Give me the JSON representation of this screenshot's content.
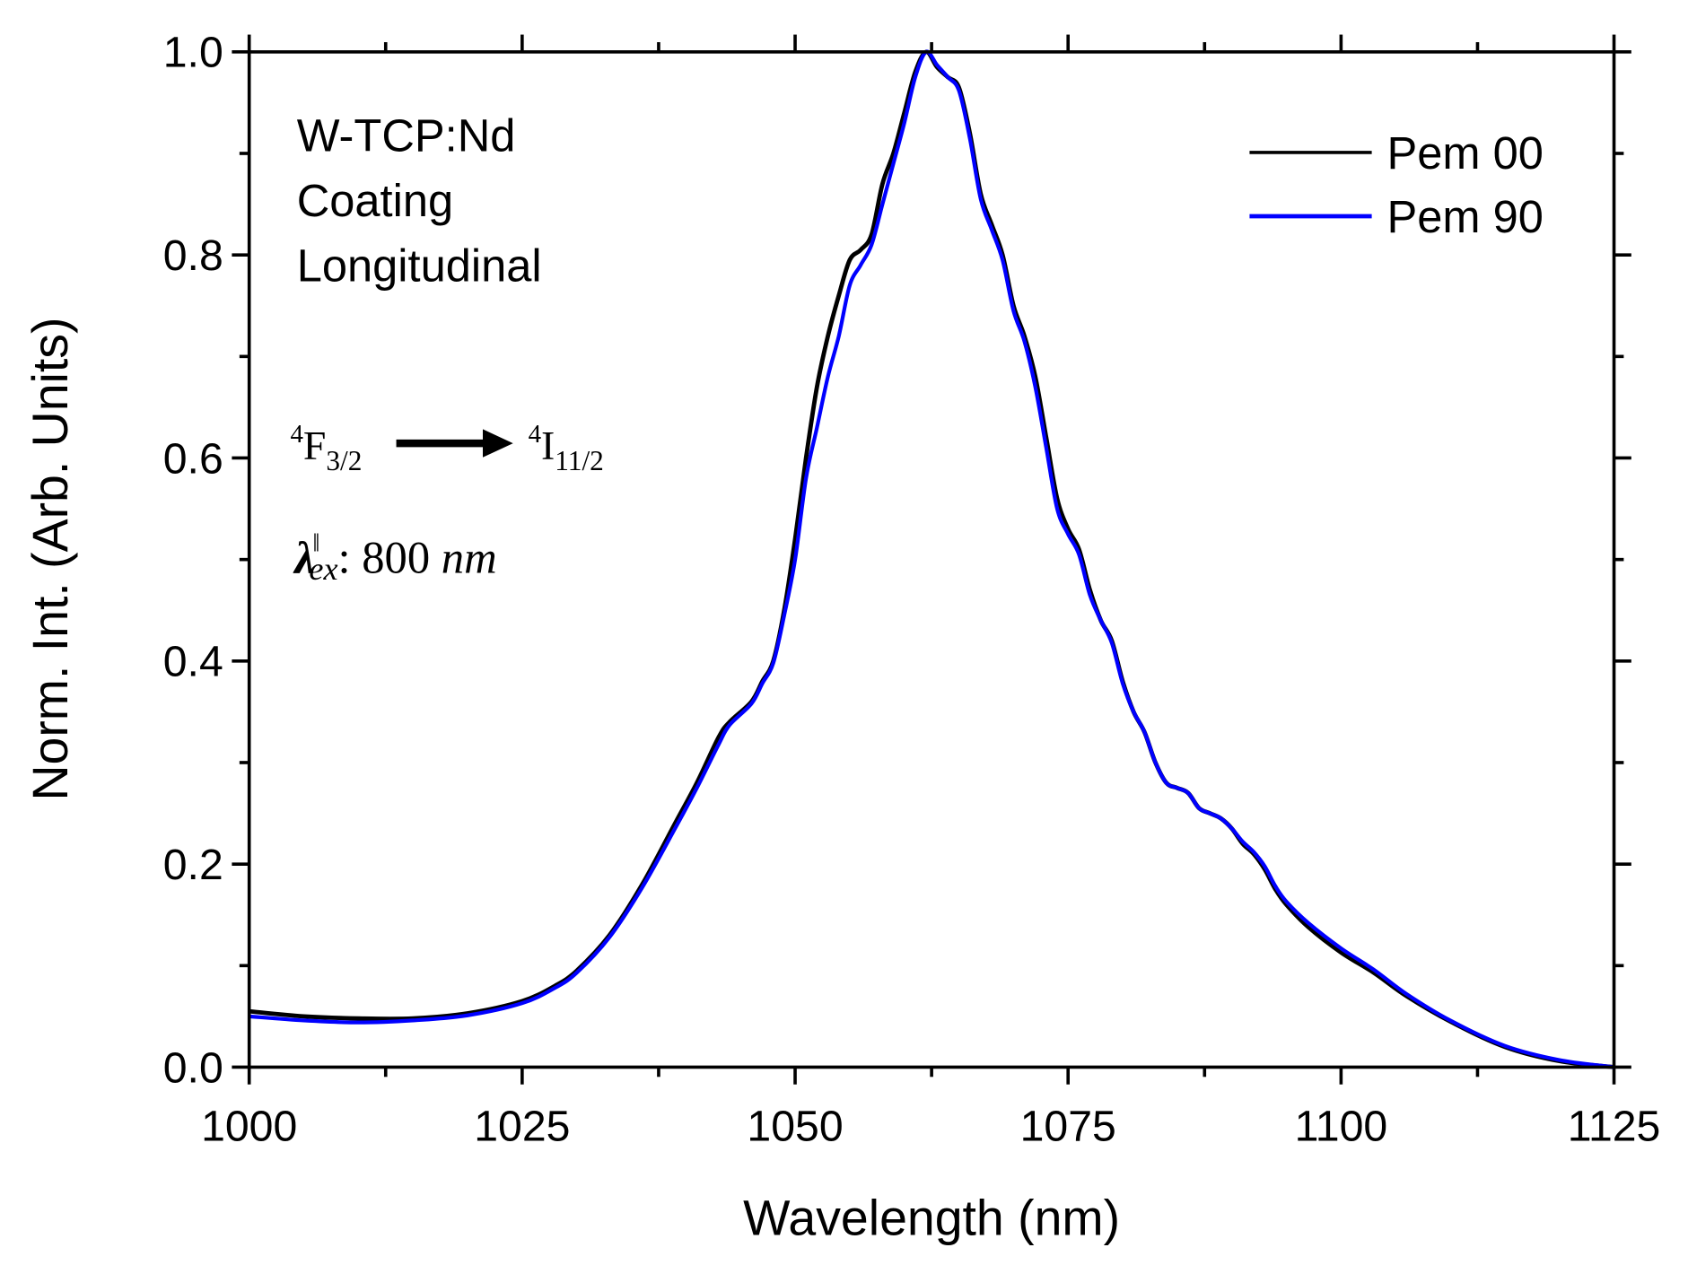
{
  "chart_data": {
    "type": "line",
    "title": "",
    "xlabel": "Wavelength (nm)",
    "ylabel": "Norm. Int. (Arb. Units)",
    "xlim": [
      1000,
      1125
    ],
    "ylim": [
      0.0,
      1.0
    ],
    "xticks": [
      "1000",
      "1025",
      "1050",
      "1075",
      "1100",
      "1125"
    ],
    "yticks": [
      "0.0",
      "0.2",
      "0.4",
      "0.6",
      "0.8",
      "1.0"
    ],
    "grid": false,
    "legend_position": "top-right",
    "x": [
      1000,
      1005,
      1010,
      1015,
      1020,
      1025,
      1028,
      1030,
      1033,
      1036,
      1039,
      1041,
      1043,
      1044,
      1046,
      1047,
      1048,
      1049,
      1050,
      1051,
      1052,
      1053,
      1054,
      1055,
      1056,
      1057,
      1058,
      1059,
      1060,
      1061,
      1062,
      1063,
      1064,
      1065,
      1066,
      1067,
      1068,
      1069,
      1070,
      1071,
      1072,
      1073,
      1074,
      1075,
      1076,
      1077,
      1078,
      1079,
      1080,
      1081,
      1082,
      1083,
      1084,
      1085,
      1086,
      1087,
      1088,
      1089,
      1090,
      1091,
      1092,
      1093,
      1094,
      1095,
      1097,
      1100,
      1103,
      1106,
      1110,
      1115,
      1120,
      1125
    ],
    "series": [
      {
        "name": "Pem 00",
        "color": "#000000",
        "values": [
          0.055,
          0.05,
          0.048,
          0.048,
          0.053,
          0.065,
          0.08,
          0.095,
          0.13,
          0.18,
          0.24,
          0.28,
          0.325,
          0.34,
          0.36,
          0.38,
          0.4,
          0.45,
          0.52,
          0.6,
          0.67,
          0.72,
          0.76,
          0.795,
          0.805,
          0.82,
          0.87,
          0.9,
          0.94,
          0.98,
          1.0,
          0.985,
          0.975,
          0.965,
          0.92,
          0.86,
          0.83,
          0.8,
          0.75,
          0.72,
          0.68,
          0.62,
          0.56,
          0.53,
          0.51,
          0.47,
          0.44,
          0.42,
          0.38,
          0.35,
          0.33,
          0.3,
          0.28,
          0.275,
          0.27,
          0.255,
          0.25,
          0.245,
          0.235,
          0.22,
          0.21,
          0.195,
          0.175,
          0.16,
          0.138,
          0.113,
          0.093,
          0.07,
          0.045,
          0.02,
          0.006,
          0.0
        ]
      },
      {
        "name": "Pem 90",
        "color": "#0000FF",
        "values": [
          0.05,
          0.046,
          0.044,
          0.046,
          0.051,
          0.063,
          0.078,
          0.093,
          0.128,
          0.177,
          0.235,
          0.275,
          0.318,
          0.337,
          0.358,
          0.378,
          0.398,
          0.445,
          0.5,
          0.58,
          0.63,
          0.68,
          0.72,
          0.77,
          0.79,
          0.81,
          0.85,
          0.89,
          0.93,
          0.975,
          1.0,
          0.987,
          0.975,
          0.962,
          0.915,
          0.855,
          0.825,
          0.795,
          0.745,
          0.715,
          0.67,
          0.61,
          0.55,
          0.525,
          0.505,
          0.465,
          0.44,
          0.418,
          0.378,
          0.35,
          0.33,
          0.3,
          0.28,
          0.275,
          0.27,
          0.255,
          0.25,
          0.245,
          0.235,
          0.222,
          0.212,
          0.198,
          0.178,
          0.163,
          0.142,
          0.117,
          0.096,
          0.072,
          0.046,
          0.021,
          0.007,
          0.0
        ]
      }
    ],
    "annotations": {
      "sample_lines": [
        "W-TCP:Nd",
        "Coating",
        "Longitudinal"
      ],
      "transition_from": {
        "base": "F",
        "pre": "4",
        "sub": "3/2"
      },
      "transition_to": {
        "base": "I",
        "pre": "4",
        "sub": "11/2"
      },
      "excitation": {
        "symbol": "λ",
        "sup": "ǁ",
        "sub": "ex",
        "value": ": 800 ",
        "unit": "nm"
      }
    }
  }
}
